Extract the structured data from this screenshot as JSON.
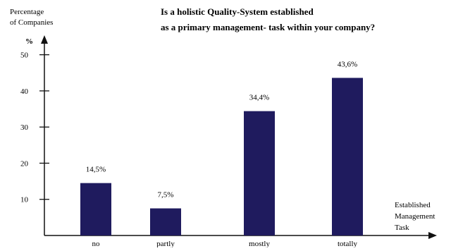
{
  "chart_data": {
    "type": "bar",
    "title": "Is a holistic Quality-System established",
    "subtitle": "as a primary management- task within your company?",
    "ylabel_lines": [
      "Percentage",
      "of Companies"
    ],
    "y_unit": "%",
    "xlabel_lines": [
      "Established",
      "Management",
      "Task"
    ],
    "categories": [
      "no",
      "partly",
      "mostly",
      "totally"
    ],
    "values": [
      14.5,
      7.5,
      34.4,
      43.6
    ],
    "data_labels": [
      "14,5%",
      "7,5%",
      "34,4%",
      "43,6%"
    ],
    "ylim": [
      0,
      55
    ],
    "yticks": [
      10,
      20,
      30,
      40,
      50
    ],
    "ytick_labels": [
      "10",
      "20",
      "30",
      "40",
      "50"
    ],
    "grid": false,
    "legend": "none",
    "bar_color": "#1f1b5e"
  }
}
